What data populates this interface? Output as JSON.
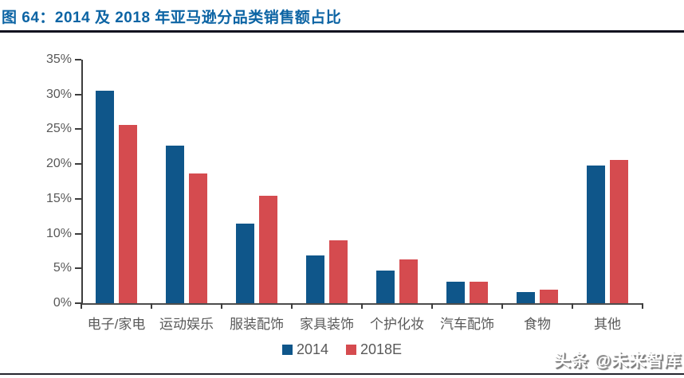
{
  "header": {
    "title": "图 64：2014 及 2018 年亚马逊分品类销售额占比"
  },
  "watermark": "头条 @未来智库",
  "colors": {
    "title_blue": "#0C64A4",
    "bar_2014": "#0F568A",
    "bar_2018e": "#D54B4F",
    "axis_label_gray": "#595959",
    "rule_dark": "#10101f"
  },
  "chart_data": {
    "type": "bar",
    "title": "图 64：2014 及 2018 年亚马逊分品类销售额占比",
    "categories": [
      "电子/家电",
      "运动娱乐",
      "服装配饰",
      "家具装饰",
      "个护化妆",
      "汽车配饰",
      "食物",
      "其他"
    ],
    "series": [
      {
        "name": "2014",
        "color": "#0F568A",
        "values": [
          30.5,
          22.7,
          11.4,
          6.9,
          4.7,
          3.1,
          1.6,
          19.8
        ]
      },
      {
        "name": "2018E",
        "color": "#D54B4F",
        "values": [
          25.6,
          18.7,
          15.4,
          9.0,
          6.3,
          3.1,
          2.0,
          20.6
        ]
      }
    ],
    "unit": "%",
    "ylim": [
      0,
      35
    ],
    "ytick_step": 5,
    "ytick_labels": [
      "0%",
      "5%",
      "10%",
      "15%",
      "20%",
      "25%",
      "30%",
      "35%"
    ],
    "xlabel": "",
    "ylabel": "",
    "grid": false,
    "legend_position": "bottom"
  }
}
